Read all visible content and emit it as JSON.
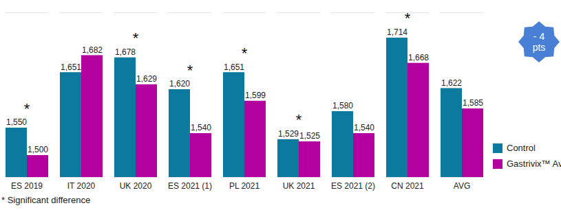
{
  "chart_data": {
    "type": "bar",
    "categories": [
      "ES 2019",
      "IT 2020",
      "UK 2020",
      "ES 2021 (1)",
      "PL 2021",
      "UK 2021",
      "ES 2021 (2)",
      "CN 2021",
      "AVG"
    ],
    "series": [
      {
        "name": "Control",
        "color": "#0b7a9e",
        "values": [
          1550,
          1651,
          1678,
          1620,
          1651,
          1529,
          1580,
          1714,
          1622
        ],
        "value_labels": [
          "1,550",
          "1,651",
          "1,678",
          "1,620",
          "1,651",
          "1,529",
          "1,580",
          "1,714",
          "1,622"
        ]
      },
      {
        "name": "Gastrivix™ Avi",
        "color": "#b4009e",
        "values": [
          1500,
          1682,
          1629,
          1540,
          1599,
          1525,
          1540,
          1668,
          1585
        ],
        "value_labels": [
          "1,500",
          "1,682",
          "1,629",
          "1,540",
          "1,599",
          "1,525",
          "1,540",
          "1,668",
          "1,585"
        ]
      }
    ],
    "ylim": [
      1460,
      1760
    ],
    "yticks": [],
    "tick_labels": "x",
    "data_labels": true,
    "legend": "right",
    "annotations": [
      {
        "category": "ES 2019",
        "text": "*"
      },
      {
        "category": "UK 2020",
        "text": "*"
      },
      {
        "category": "ES 2021 (1)",
        "text": "*"
      },
      {
        "category": "PL 2021",
        "text": "*"
      },
      {
        "category": "UK 2021",
        "text": "*"
      },
      {
        "category": "CN 2021",
        "text": "*"
      },
      {
        "text": "- 4 pts"
      }
    ],
    "footnote": "* Significant difference"
  }
}
